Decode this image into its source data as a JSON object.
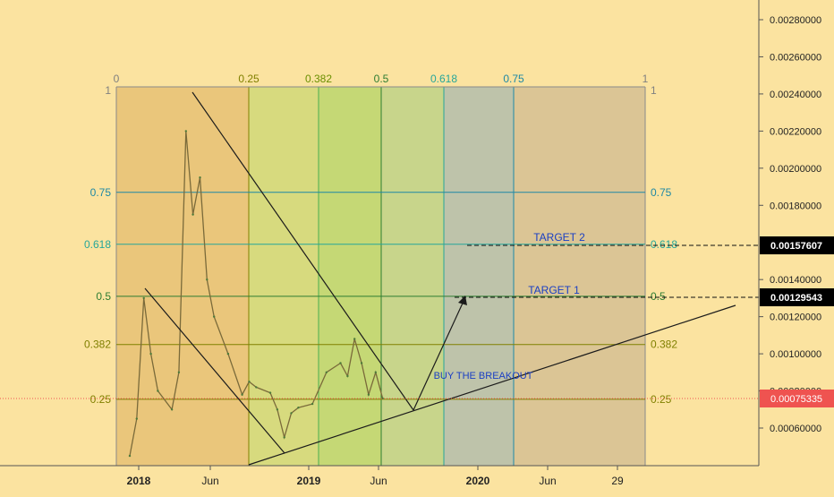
{
  "chart_data": {
    "type": "line",
    "title": "",
    "x_ticks": [
      "2018",
      "Jun",
      "2019",
      "Jun",
      "2020",
      "Jun",
      "29"
    ],
    "y_ticks": [
      "0.00280000",
      "0.00260000",
      "0.00240000",
      "0.00220000",
      "0.00200000",
      "0.00180000",
      "0.00140000",
      "0.00120000",
      "0.00100000",
      "0.00080000",
      "0.00060000"
    ],
    "ylim": [
      0.00038,
      0.0029
    ],
    "time_fib": {
      "labels": [
        "0",
        "0.25",
        "0.382",
        "0.5",
        "0.618",
        "0.75",
        "1"
      ],
      "colors": [
        "#808080",
        "#808000",
        "#4caf50",
        "#2e7d32",
        "#26a69a",
        "#1e88a5",
        "#808080"
      ]
    },
    "price_fib": {
      "top_label": "1",
      "levels": [
        {
          "label": "0.75",
          "price": 0.00187,
          "color": "#1e88a5"
        },
        {
          "label": "0.618",
          "price": 0.00159,
          "color": "#26a69a"
        },
        {
          "label": "0.5",
          "price": 0.00131,
          "color": "#2e7d32"
        },
        {
          "label": "0.382",
          "price": 0.00105,
          "color": "#808000"
        },
        {
          "label": "0.25",
          "price": 0.000755,
          "color": "#808000"
        }
      ]
    },
    "price_series": [
      {
        "date": "2018-01",
        "price": 0.00045
      },
      {
        "date": "2018-01",
        "price": 0.00065
      },
      {
        "date": "2018-02",
        "price": 0.0013
      },
      {
        "date": "2018-02",
        "price": 0.001
      },
      {
        "date": "2018-03",
        "price": 0.0008
      },
      {
        "date": "2018-04",
        "price": 0.0007
      },
      {
        "date": "2018-04",
        "price": 0.0009
      },
      {
        "date": "2018-05",
        "price": 0.0022
      },
      {
        "date": "2018-05",
        "price": 0.00175
      },
      {
        "date": "2018-06",
        "price": 0.00195
      },
      {
        "date": "2018-06",
        "price": 0.0014
      },
      {
        "date": "2018-07",
        "price": 0.0012
      },
      {
        "date": "2018-08",
        "price": 0.001
      },
      {
        "date": "2018-09",
        "price": 0.00078
      },
      {
        "date": "2018-09",
        "price": 0.00085
      },
      {
        "date": "2018-10",
        "price": 0.00082
      },
      {
        "date": "2018-11",
        "price": 0.00079
      },
      {
        "date": "2018-11",
        "price": 0.0007
      },
      {
        "date": "2018-12",
        "price": 0.00055
      },
      {
        "date": "2018-12",
        "price": 0.00068
      },
      {
        "date": "2019-01",
        "price": 0.00071
      },
      {
        "date": "2019-02",
        "price": 0.00073
      },
      {
        "date": "2019-03",
        "price": 0.0009
      },
      {
        "date": "2019-04",
        "price": 0.00095
      },
      {
        "date": "2019-04",
        "price": 0.00088
      },
      {
        "date": "2019-05",
        "price": 0.00108
      },
      {
        "date": "2019-05",
        "price": 0.00095
      },
      {
        "date": "2019-06",
        "price": 0.00078
      },
      {
        "date": "2019-06",
        "price": 0.0009
      },
      {
        "date": "2019-07",
        "price": 0.00076
      }
    ],
    "annotations": {
      "breakout_label": "BUY THE BREAKOUT",
      "target1_label": "TARGET 1",
      "target2_label": "TARGET 2",
      "target1_price": "0.00129543",
      "target2_price": "0.00157607",
      "last_price": "0.00075335"
    },
    "colors": {
      "background": "#fbe3a0",
      "target_badge": "#000000",
      "last_price_badge": "#ef5350",
      "annotation_text": "#1a3fc4"
    }
  }
}
